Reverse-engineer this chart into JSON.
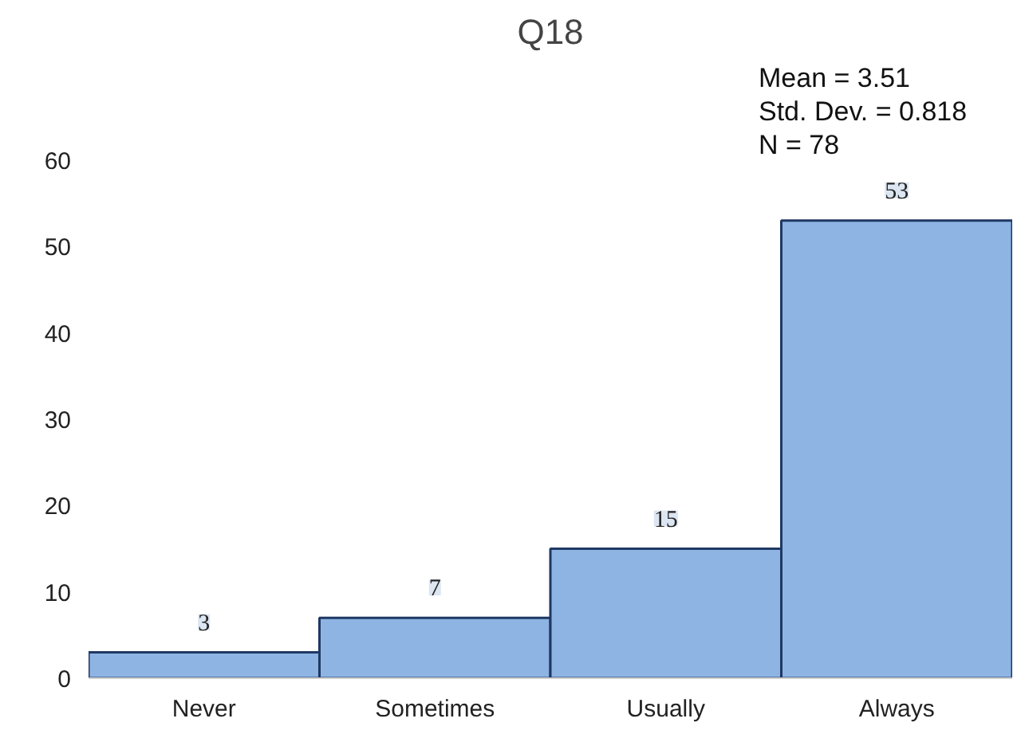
{
  "chart_data": {
    "type": "bar",
    "title": "Q18",
    "categories": [
      "Never",
      "Sometimes",
      "Usually",
      "Always"
    ],
    "values": [
      3,
      7,
      15,
      53
    ],
    "color": "#8eb4e3",
    "ylim": [
      0,
      60
    ],
    "yticks": [
      0,
      10,
      20,
      30,
      40,
      50,
      60
    ],
    "grid": false,
    "legend": false,
    "data_labels": true,
    "annotations": [
      "Mean = 3.51",
      "Std. Dev. = 0.818",
      "N = 78"
    ]
  }
}
